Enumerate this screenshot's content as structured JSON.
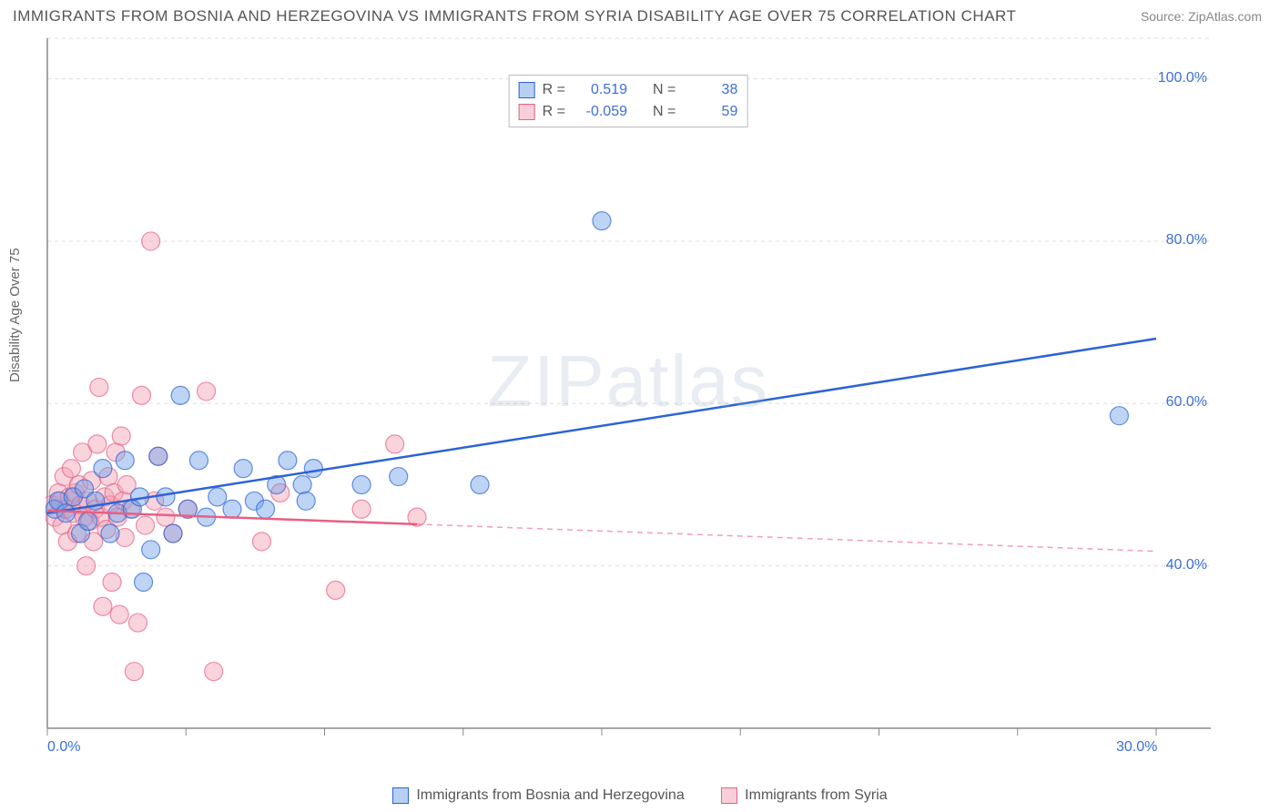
{
  "title": "IMMIGRANTS FROM BOSNIA AND HERZEGOVINA VS IMMIGRANTS FROM SYRIA DISABILITY AGE OVER 75 CORRELATION CHART",
  "source_label": "Source: ZipAtlas.com",
  "y_axis_label": "Disability Age Over 75",
  "watermark": "ZIPatlas",
  "chart": {
    "type": "scatter",
    "background_color": "#ffffff",
    "grid_color": "#dddddd",
    "axis_color": "#888888",
    "tick_label_color": "#3b6fd6",
    "xlim": [
      0,
      30
    ],
    "ylim": [
      20,
      105
    ],
    "x_ticks": [
      0,
      3.75,
      7.5,
      11.25,
      15,
      18.75,
      22.5,
      26.25,
      30
    ],
    "x_tick_labels": {
      "0": "0.0%",
      "30": "30.0%"
    },
    "y_grid": [
      40,
      60,
      80,
      100
    ],
    "y_tick_labels": {
      "40": "40.0%",
      "60": "60.0%",
      "80": "80.0%",
      "100": "100.0%"
    },
    "marker_radius": 10,
    "marker_opacity": 0.45,
    "line_width": 2.5,
    "series": [
      {
        "name": "Immigrants from Bosnia and Herzegovina",
        "color": "#6f9fe8",
        "line_color": "#2b63d6",
        "r_label": "R =",
        "r_value": "0.519",
        "n_label": "N =",
        "n_value": "38",
        "trend": {
          "x1": 0,
          "y1": 46.5,
          "x2": 30,
          "y2": 68,
          "solid_until_x": 30
        },
        "points": [
          [
            0.2,
            47
          ],
          [
            0.3,
            48
          ],
          [
            0.5,
            46.5
          ],
          [
            0.7,
            48.5
          ],
          [
            0.9,
            44
          ],
          [
            1.0,
            49.5
          ],
          [
            1.1,
            45.5
          ],
          [
            1.3,
            48
          ],
          [
            1.5,
            52
          ],
          [
            1.7,
            44
          ],
          [
            1.9,
            46.5
          ],
          [
            2.1,
            53
          ],
          [
            2.3,
            47
          ],
          [
            2.5,
            48.5
          ],
          [
            2.8,
            42
          ],
          [
            3.0,
            53.5
          ],
          [
            3.2,
            48.5
          ],
          [
            3.4,
            44
          ],
          [
            3.6,
            61
          ],
          [
            3.8,
            47
          ],
          [
            4.1,
            53
          ],
          [
            4.3,
            46
          ],
          [
            4.6,
            48.5
          ],
          [
            5.0,
            47
          ],
          [
            5.3,
            52
          ],
          [
            5.6,
            48
          ],
          [
            5.9,
            47
          ],
          [
            6.2,
            50
          ],
          [
            6.5,
            53
          ],
          [
            6.9,
            50
          ],
          [
            7.0,
            48
          ],
          [
            7.2,
            52
          ],
          [
            8.5,
            50
          ],
          [
            9.5,
            51
          ],
          [
            11.7,
            50
          ],
          [
            15.0,
            82.5
          ],
          [
            29.0,
            58.5
          ],
          [
            2.6,
            38
          ]
        ]
      },
      {
        "name": "Immigrants from Syria",
        "color": "#f29fb3",
        "line_color": "#e85f84",
        "r_label": "R =",
        "r_value": "-0.059",
        "n_label": "N =",
        "n_value": "59",
        "trend": {
          "x1": 0,
          "y1": 46.8,
          "x2": 30,
          "y2": 41.8,
          "solid_until_x": 10
        },
        "points": [
          [
            0.1,
            47.5
          ],
          [
            0.2,
            46
          ],
          [
            0.3,
            49
          ],
          [
            0.35,
            48
          ],
          [
            0.4,
            45
          ],
          [
            0.45,
            51
          ],
          [
            0.5,
            47
          ],
          [
            0.55,
            43
          ],
          [
            0.6,
            48.5
          ],
          [
            0.65,
            52
          ],
          [
            0.7,
            46.5
          ],
          [
            0.75,
            49
          ],
          [
            0.8,
            44
          ],
          [
            0.85,
            50
          ],
          [
            0.9,
            47.5
          ],
          [
            0.95,
            54
          ],
          [
            1.0,
            46
          ],
          [
            1.05,
            40
          ],
          [
            1.1,
            48
          ],
          [
            1.15,
            45.5
          ],
          [
            1.2,
            50.5
          ],
          [
            1.25,
            43
          ],
          [
            1.3,
            47
          ],
          [
            1.35,
            55
          ],
          [
            1.4,
            62
          ],
          [
            1.45,
            46
          ],
          [
            1.5,
            35
          ],
          [
            1.55,
            48.5
          ],
          [
            1.6,
            44.5
          ],
          [
            1.65,
            51
          ],
          [
            1.7,
            47.5
          ],
          [
            1.75,
            38
          ],
          [
            1.8,
            49
          ],
          [
            1.85,
            54
          ],
          [
            1.9,
            46
          ],
          [
            1.95,
            34
          ],
          [
            2.0,
            56
          ],
          [
            2.05,
            48
          ],
          [
            2.1,
            43.5
          ],
          [
            2.15,
            50
          ],
          [
            2.25,
            47
          ],
          [
            2.35,
            27
          ],
          [
            2.45,
            33
          ],
          [
            2.55,
            61
          ],
          [
            2.65,
            45
          ],
          [
            2.8,
            80
          ],
          [
            2.9,
            48
          ],
          [
            3.0,
            53.5
          ],
          [
            3.2,
            46
          ],
          [
            3.4,
            44
          ],
          [
            3.8,
            47
          ],
          [
            4.3,
            61.5
          ],
          [
            4.5,
            27
          ],
          [
            5.8,
            43
          ],
          [
            6.3,
            49
          ],
          [
            7.8,
            37
          ],
          [
            8.5,
            47
          ],
          [
            9.4,
            55
          ],
          [
            10.0,
            46
          ]
        ]
      }
    ]
  },
  "legend_bottom": {
    "series1": "Immigrants from Bosnia and Herzegovina",
    "series2": "Immigrants from Syria"
  }
}
